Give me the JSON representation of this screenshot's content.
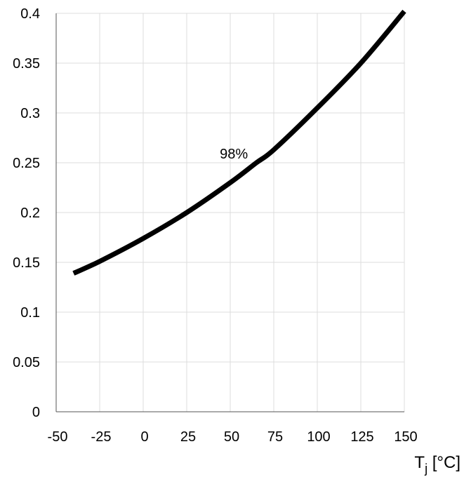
{
  "chart_data": {
    "type": "line",
    "title": "",
    "xlabel_main": "T",
    "xlabel_sub": "j",
    "xlabel_unit": " [°C]",
    "ylabel": "",
    "xlim": [
      -50,
      150
    ],
    "ylim": [
      0,
      0.4
    ],
    "xticks": [
      -50,
      -25,
      0,
      25,
      50,
      75,
      100,
      125,
      150
    ],
    "xtick_labels": [
      "-50",
      "-25",
      "0",
      "25",
      "50",
      "75",
      "100",
      "125",
      "150"
    ],
    "yticks": [
      0,
      0.05,
      0.1,
      0.15,
      0.2,
      0.25,
      0.3,
      0.35,
      0.4
    ],
    "ytick_labels": [
      "0",
      "0.05",
      "0.1",
      "0.15",
      "0.2",
      "0.25",
      "0.3",
      "0.35",
      "0.4"
    ],
    "grid": true,
    "series": [
      {
        "x": [
          -40,
          -25,
          0,
          25,
          50,
          65,
          75,
          100,
          125,
          150
        ],
        "y": [
          0.139,
          0.151,
          0.174,
          0.2,
          0.23,
          0.25,
          0.263,
          0.305,
          0.35,
          0.402
        ],
        "color": "#000000"
      }
    ],
    "annotations": [
      {
        "text": "98%",
        "x": 65,
        "y": 0.25
      }
    ]
  }
}
